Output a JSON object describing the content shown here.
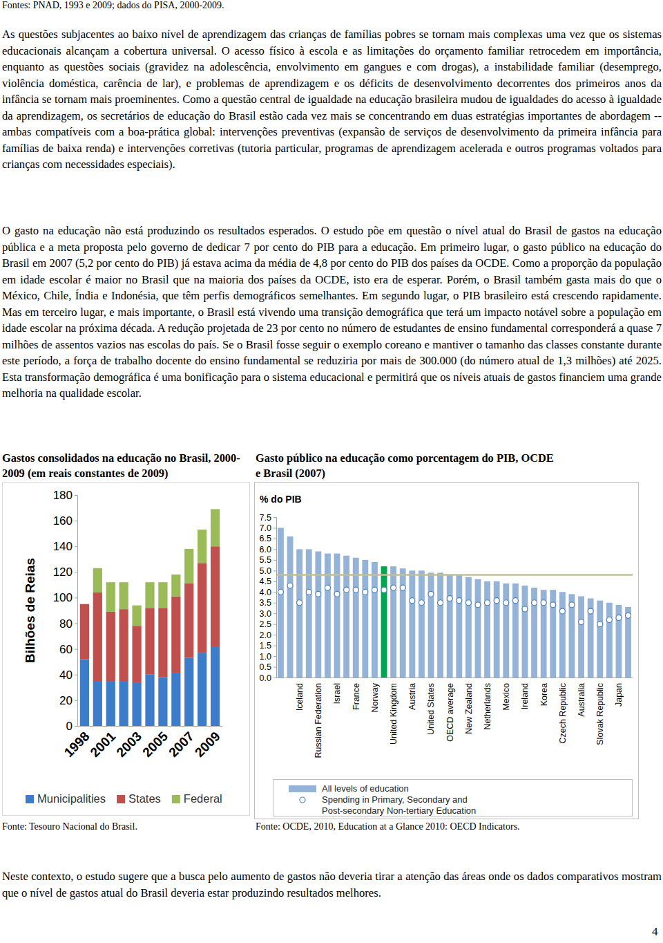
{
  "source_line": "Fontes: PNAD, 1993 e 2009; dados do PISA, 2000-2009.",
  "paragraphs": [
    "As questões subjacentes ao baixo nível de aprendizagem das crianças de famílias pobres se tornam mais complexas uma vez que os sistemas educacionais alcançam a cobertura universal. O acesso físico à escola e as limitações do orçamento familiar retrocedem em importância, enquanto as questões sociais (gravidez na adolescência, envolvimento em gangues e com drogas), a instabilidade familiar (desemprego, violência doméstica, carência de lar), e problemas de aprendizagem e os déficits de desenvolvimento decorrentes dos primeiros anos da infância se tornam mais proeminentes. Como a questão central de igualdade na educação brasileira mudou de igualdades do acesso à igualdade da aprendizagem, os secretários de educação do Brasil estão cada vez mais se concentrando em duas estratégias importantes de abordagem -- ambas compatíveis com a boa-prática global: intervenções preventivas (expansão de serviços de desenvolvimento da primeira infância para famílias de baixa renda) e intervenções corretivas (tutoria particular, programas de aprendizagem acelerada e outros programas voltados para crianças com necessidades especiais).",
    "O gasto na educação não está produzindo os resultados esperados. O estudo põe em questão o nível atual do Brasil de gastos na educação pública e a meta proposta pelo governo de dedicar 7 por cento do PIB para a educação. Em primeiro lugar, o gasto público na educação do Brasil em 2007 (5,2 por cento do PIB) já estava acima da média de 4,8 por cento do PIB dos países da OCDE. Como a proporção da população em idade escolar é maior no Brasil que na maioria dos países da OCDE, isto era de esperar. Porém, o Brasil também gasta mais do que o México, Chile, Índia e Indonésia, que têm perfis demográficos semelhantes. Em segundo lugar, o PIB brasileiro está crescendo rapidamente. Mas em terceiro lugar, e mais importante, o Brasil está vivendo uma transição demográfica que terá um impacto notável sobre a população em idade escolar na próxima década. A redução projetada de 23 por cento no número de estudantes de ensino fundamental corresponderá a quase 7 milhões de assentos vazios nas escolas do país. Se o Brasil fosse seguir o exemplo coreano e mantiver o tamanho das classes constante durante este período, a força de trabalho docente do ensino fundamental se reduziria por mais de 300.000 (do número atual de 1,3 milhões) até 2025. Esta transformação demográfica é uma bonificação para o sistema educacional e permitirá que os níveis atuais de gastos financiem uma grande melhoria na qualidade escolar.",
    "Neste contexto, o estudo sugere que a busca pelo aumento de gastos não deveria tirar a atenção das áreas onde os dados comparativos mostram que o nível de gastos atual do Brasil deveria estar produzindo resultados melhores."
  ],
  "sources": [
    "Fonte: Tesouro Nacional do Brasil.",
    "Fonte: OCDE, 2010, Education at a Glance 2010: OECD Indicators."
  ],
  "page_number": "4",
  "chart_data": [
    {
      "type": "bar",
      "title": "Gastos consolidados na educação no Brasil, 2000-2009 (em reais constantes de 2009)",
      "ylabel": "Bilhões de Reias",
      "stacked": true,
      "legend": "bottom",
      "grid": false,
      "categories": [
        "1998",
        null,
        "2001",
        null,
        "2003",
        null,
        "2005",
        null,
        "2007",
        null,
        "2009"
      ],
      "series": [
        {
          "name": "Municipalities",
          "color": "#3d7cc9",
          "values": [
            52,
            35,
            35,
            35,
            34,
            40,
            38,
            41,
            53,
            57,
            62
          ]
        },
        {
          "name": "States",
          "color": "#c0504d",
          "values": [
            43,
            69,
            54,
            56,
            44,
            52,
            54,
            60,
            58,
            70,
            78
          ]
        },
        {
          "name": "Federal",
          "color": "#9bbb59",
          "values": [
            0,
            19,
            23,
            21,
            16,
            20,
            20,
            17,
            27,
            26,
            29
          ]
        }
      ],
      "ylim": [
        0,
        180
      ],
      "yticks": [
        0,
        20,
        40,
        60,
        80,
        100,
        120,
        140,
        160,
        180
      ]
    },
    {
      "type": "bar",
      "title": "Gasto público na educação como porcentagem do PIB, OCDE e Brasil (2007)",
      "ylabel": "% do PIB",
      "legend": "bottom",
      "grid": false,
      "categories": [
        null,
        null,
        "Iceland",
        null,
        "Russian Federation",
        null,
        "Israel",
        null,
        "France",
        null,
        "Norway",
        null,
        "United Kingdom",
        null,
        "Austria",
        null,
        "United States",
        null,
        "OECD average",
        null,
        "New Zealand",
        null,
        "Netherlands",
        null,
        "Mexico",
        null,
        "Ireland",
        null,
        "Korea",
        null,
        "Czech Republic",
        null,
        "Australia",
        null,
        "Slovak Republic",
        null,
        "Japan",
        null
      ],
      "series": [
        {
          "name": "All levels of education",
          "type": "bar",
          "color": "#95b3d7",
          "colors": [
            "#95b3d7",
            "#95b3d7",
            "#95b3d7",
            "#95b3d7",
            "#95b3d7",
            "#95b3d7",
            "#95b3d7",
            "#95b3d7",
            "#95b3d7",
            "#95b3d7",
            "#95b3d7",
            "#00a651",
            "#95b3d7",
            "#95b3d7",
            "#95b3d7",
            "#95b3d7",
            "#95b3d7",
            "#95b3d7",
            "#95b3d7",
            "#95b3d7",
            "#95b3d7",
            "#95b3d7",
            "#95b3d7",
            "#95b3d7",
            "#95b3d7",
            "#95b3d7",
            "#95b3d7",
            "#95b3d7",
            "#95b3d7",
            "#95b3d7",
            "#95b3d7",
            "#95b3d7",
            "#95b3d7",
            "#95b3d7",
            "#95b3d7",
            "#95b3d7",
            "#95b3d7",
            "#95b3d7"
          ],
          "values": [
            7.0,
            6.6,
            6.0,
            6.0,
            5.9,
            5.8,
            5.8,
            5.7,
            5.6,
            5.5,
            5.4,
            5.2,
            5.2,
            5.1,
            5.0,
            5.0,
            4.9,
            4.9,
            4.8,
            4.8,
            4.7,
            4.6,
            4.5,
            4.5,
            4.4,
            4.4,
            4.3,
            4.2,
            4.1,
            4.1,
            4.0,
            3.9,
            3.8,
            3.7,
            3.6,
            3.5,
            3.4,
            3.3
          ]
        },
        {
          "name": "Spending in Primary, Secondary and Post-secondary Non-tertiary Education",
          "type": "scatter",
          "marker": "circle",
          "color": "#4f81bd",
          "values": [
            4.0,
            4.3,
            3.5,
            4.0,
            3.9,
            4.2,
            3.9,
            4.1,
            4.1,
            4.0,
            4.1,
            4.1,
            4.2,
            4.2,
            3.6,
            3.5,
            3.9,
            3.5,
            3.7,
            3.6,
            3.5,
            3.4,
            3.5,
            3.6,
            3.5,
            3.6,
            3.2,
            3.5,
            3.5,
            3.4,
            3.1,
            3.4,
            2.6,
            3.1,
            2.5,
            2.7,
            2.8,
            2.9
          ]
        }
      ],
      "average_line": 4.8,
      "ylim": [
        0,
        7.5
      ],
      "yticks": [
        {
          "value": 0,
          "label": "0.0"
        },
        0.5,
        {
          "value": 1,
          "label": "1.0"
        },
        1.5,
        {
          "value": 2,
          "label": "2.0"
        },
        2.5,
        {
          "value": 3,
          "label": "3.0"
        },
        3.5,
        {
          "value": 4,
          "label": "4.0"
        },
        4.5,
        {
          "value": 5,
          "label": "5.0"
        },
        5.5,
        {
          "value": 6,
          "label": "6.0"
        },
        6.5,
        {
          "value": 7,
          "label": "7.0"
        },
        7.5
      ]
    }
  ]
}
